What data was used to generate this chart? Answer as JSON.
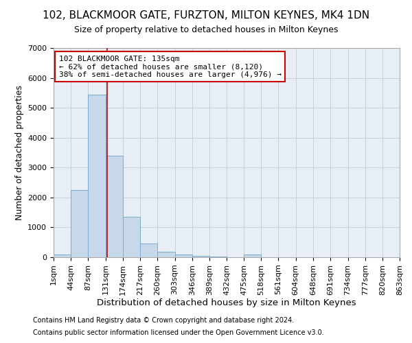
{
  "title1": "102, BLACKMOOR GATE, FURZTON, MILTON KEYNES, MK4 1DN",
  "title2": "Size of property relative to detached houses in Milton Keynes",
  "xlabel": "Distribution of detached houses by size in Milton Keynes",
  "ylabel": "Number of detached properties",
  "footnote1": "Contains HM Land Registry data © Crown copyright and database right 2024.",
  "footnote2": "Contains public sector information licensed under the Open Government Licence v3.0.",
  "annotation_line1": "102 BLACKMOOR GATE: 135sqm",
  "annotation_line2": "← 62% of detached houses are smaller (8,120)",
  "annotation_line3": "38% of semi-detached houses are larger (4,976) →",
  "bar_color": "#c8d8eb",
  "bar_edge_color": "#7aaacb",
  "grid_color": "#c8d0dc",
  "background_color": "#e8eef5",
  "red_line_color": "#cc0000",
  "annotation_box_color": "#ffffff",
  "annotation_box_edge": "#cc0000",
  "bin_edges": [
    1,
    44,
    87,
    131,
    174,
    217,
    260,
    303,
    346,
    389,
    432,
    475,
    518,
    561,
    604,
    648,
    691,
    734,
    777,
    820,
    863
  ],
  "bar_heights": [
    100,
    2250,
    5450,
    3400,
    1350,
    450,
    175,
    100,
    50,
    20,
    10,
    100,
    5,
    2,
    1,
    1,
    1,
    1,
    1,
    1
  ],
  "red_line_x": 135,
  "ylim": [
    0,
    7000
  ],
  "yticks": [
    0,
    1000,
    2000,
    3000,
    4000,
    5000,
    6000,
    7000
  ],
  "title1_fontsize": 11,
  "title2_fontsize": 9,
  "ylabel_fontsize": 9,
  "xlabel_fontsize": 9.5,
  "tick_fontsize": 8,
  "footnote_fontsize": 7
}
